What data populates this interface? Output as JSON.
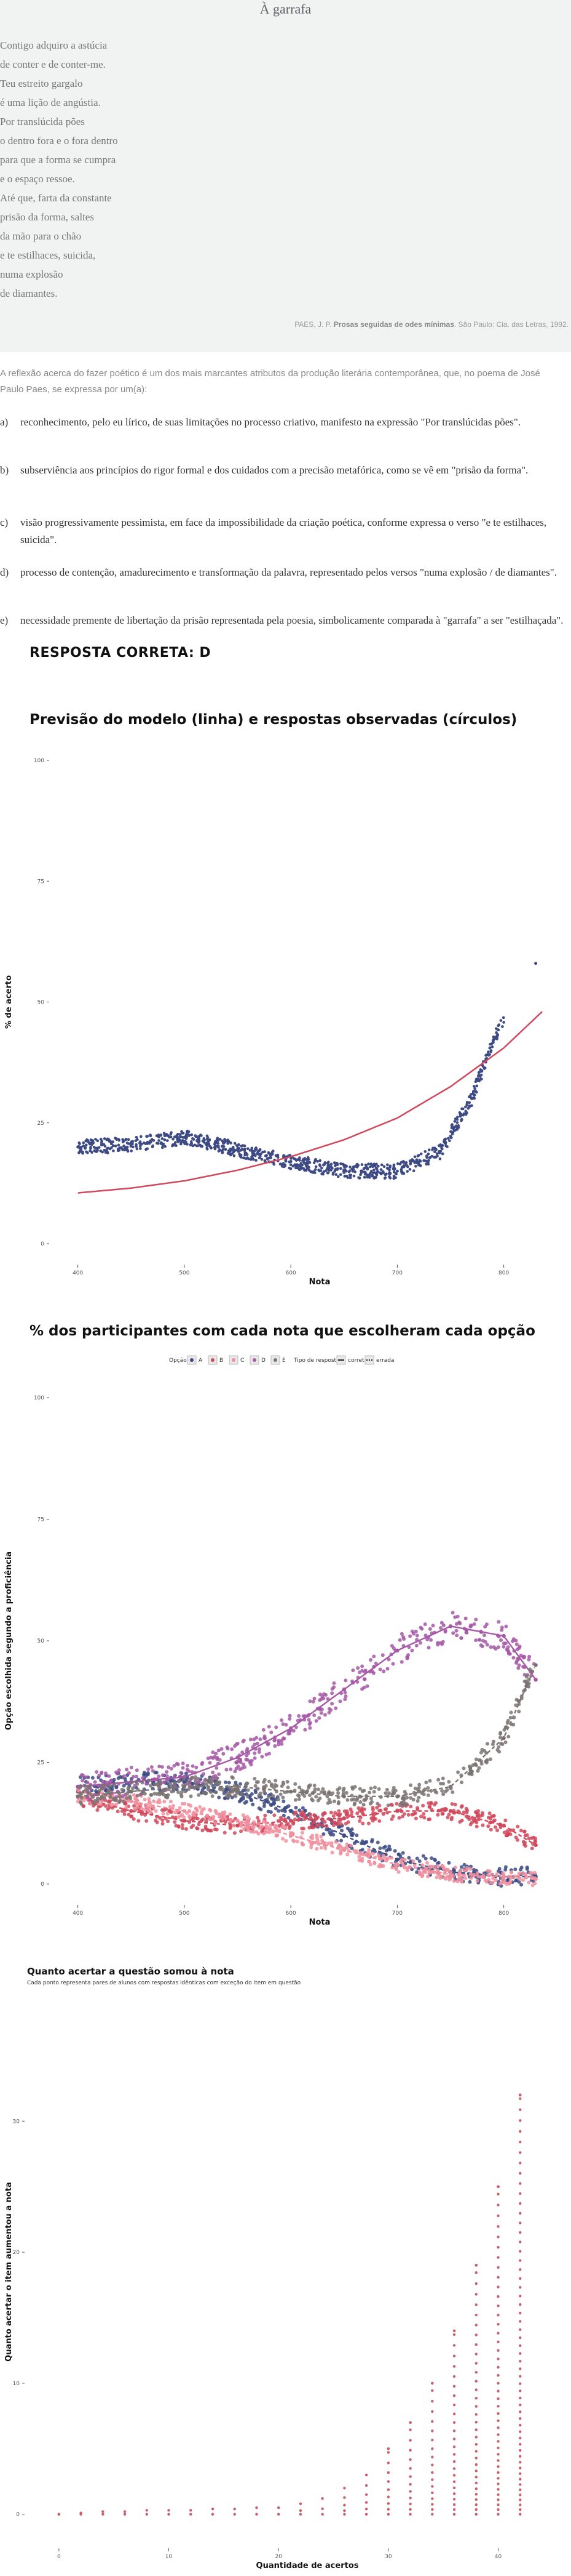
{
  "poem": {
    "title": "À garrafa",
    "lines": [
      "Contigo adquiro a astúcia",
      "de conter e de conter-me.",
      "Teu estreito gargalo",
      "é uma lição de angústia.",
      "Por translúcida pões",
      "o dentro fora e o fora dentro",
      "para que a forma se cumpra",
      "e o espaço ressoe.",
      "Até que, farta da constante",
      "prisão da forma, saltes",
      "da mão para o chão",
      "e te estilhaces, suicida,",
      "numa explosão",
      "de diamantes."
    ],
    "source_author": "PAES, J. P.",
    "source_book": "Prosas seguidas de odes mínimas",
    "source_rest": ". São Paulo: Cia. das Letras, 1992."
  },
  "question": {
    "intro": "A reflexão acerca do fazer poético é um dos mais marcantes atributos da produção literária contemporânea, que, no poema de José Paulo Paes, se expressa por um(a):",
    "alternatives": [
      {
        "letter": "a)",
        "text": "reconhecimento, pelo eu lírico, de suas limitações no processo criativo, manifesto na expressão \"Por translúcidas pões\"."
      },
      {
        "letter": "b)",
        "text": "subserviência aos princípios do rigor formal e dos cuidados com a precisão metafórica, como se vê em \"prisão da forma\"."
      },
      {
        "letter": "c)",
        "text": "visão progressivamente pessimista, em face da impossibilidade da criação poética, conforme expressa o verso \"e te estilhaces, suicida\"."
      },
      {
        "letter": "d)",
        "text": "processo de contenção, amadurecimento e transformação da palavra, representado pelos versos \"numa explosão / de diamantes\"."
      },
      {
        "letter": "e)",
        "text": "necessidade premente de libertação da prisão representada pela poesia, simbolicamente comparada à \"garrafa\" a ser \"estilhaçada\"."
      }
    ],
    "correct_answer": "RESPOSTA CORRETA: D"
  },
  "colors": {
    "navy": "#3d4a84",
    "red": "#d0485b",
    "pink": "#f08f9e",
    "purple": "#a558a6",
    "gray": "#7a7372",
    "salmon": "#c9606a"
  },
  "chart_data": [
    {
      "type": "scatter",
      "title": "Previsão do modelo (linha) e respostas observadas (círculos)",
      "xlabel": "Nota",
      "ylabel": "% de acerto",
      "xticks": [
        "400",
        "500",
        "600",
        "700",
        "800"
      ],
      "yticks": [
        "0",
        "25",
        "50",
        "75",
        "100"
      ],
      "xlim": [
        395,
        836
      ],
      "ylim": [
        0,
        100
      ],
      "series": [
        {
          "role": "observed",
          "x": [
            400,
            450,
            500,
            550,
            600,
            650,
            700,
            740,
            770,
            790,
            830
          ],
          "y": [
            20,
            20.5,
            22,
            19.5,
            17,
            15,
            15,
            19,
            30,
            42,
            58
          ]
        },
        {
          "role": "model",
          "x": [
            400,
            450,
            500,
            550,
            600,
            650,
            700,
            750,
            800,
            836
          ],
          "y": [
            10.5,
            11.5,
            13,
            15.2,
            18,
            21.5,
            26,
            32.5,
            40.5,
            48
          ]
        }
      ]
    },
    {
      "type": "scatter",
      "title": "% dos participantes com cada nota que escolheram cada opção",
      "xlabel": "Nota",
      "ylabel": "Opção escolhida segundo a proficiência",
      "xticks": [
        "400",
        "500",
        "600",
        "700",
        "800"
      ],
      "yticks": [
        "0",
        "25",
        "50",
        "75",
        "100"
      ],
      "xlim": [
        395,
        836
      ],
      "ylim": [
        0,
        100
      ],
      "legend": {
        "option_title": "Opção",
        "options": [
          "A",
          "B",
          "C",
          "D",
          "E"
        ],
        "type_title": "Tipo de resposta",
        "types": [
          "correta",
          "errada"
        ]
      },
      "series": [
        {
          "name": "A",
          "x": [
            400,
            450,
            500,
            550,
            600,
            650,
            700,
            750,
            800,
            830
          ],
          "y": [
            20,
            21,
            21,
            19,
            15,
            10,
            5,
            2.5,
            1.5,
            1.5
          ]
        },
        {
          "name": "B",
          "x": [
            400,
            450,
            500,
            550,
            600,
            650,
            700,
            750,
            800,
            830
          ],
          "y": [
            18,
            15,
            13,
            12,
            13,
            13.5,
            15,
            15,
            12,
            8
          ]
        },
        {
          "name": "C",
          "x": [
            400,
            450,
            500,
            550,
            600,
            650,
            700,
            750,
            800,
            830
          ],
          "y": [
            18,
            17,
            15,
            13,
            10,
            7,
            4,
            2,
            1.5,
            1
          ]
        },
        {
          "name": "D",
          "x": [
            400,
            450,
            500,
            550,
            600,
            650,
            700,
            750,
            800,
            830
          ],
          "y": [
            20,
            21,
            22,
            26,
            32,
            40,
            48,
            53,
            51,
            42
          ]
        },
        {
          "name": "E",
          "x": [
            400,
            450,
            500,
            550,
            600,
            650,
            700,
            750,
            800,
            830
          ],
          "y": [
            18,
            19,
            20,
            20,
            19,
            18,
            18,
            20,
            30,
            45
          ]
        }
      ]
    },
    {
      "type": "scatter",
      "title": "Quanto acertar a questão somou à nota",
      "subtitle": "Cada ponto representa pares de alunos com respostas idênticas com exceção do item em questão",
      "xlabel": "Quantidade de acertos",
      "ylabel": "Quanto acertar o item aumentou a nota",
      "xticks": [
        "0",
        "10",
        "20",
        "30",
        "40"
      ],
      "yticks": [
        "0",
        "10",
        "20",
        "30"
      ],
      "xlim": [
        -1,
        44
      ],
      "ylim": [
        -1,
        38
      ],
      "x": [
        0,
        2,
        4,
        6,
        8,
        10,
        12,
        14,
        16,
        18,
        20,
        22,
        24,
        26,
        28,
        30,
        32,
        34,
        36,
        38,
        40,
        42
      ],
      "y": [
        0,
        0.1,
        0.2,
        0.2,
        0.3,
        0.3,
        0.3,
        0.4,
        0.4,
        0.5,
        0.5,
        0.8,
        1.2,
        2,
        3,
        5,
        7,
        10,
        14,
        19,
        25,
        32
      ]
    }
  ]
}
